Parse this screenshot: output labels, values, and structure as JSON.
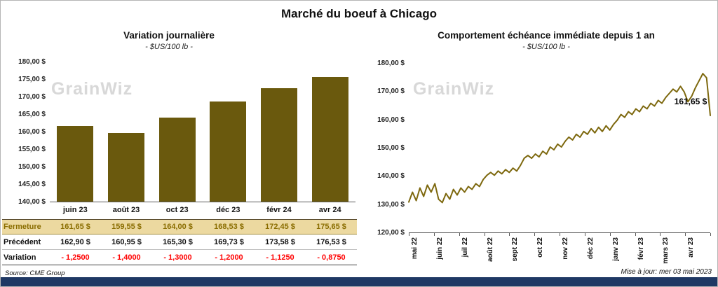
{
  "page": {
    "title": "Marché du boeuf à Chicago",
    "source": "Source: CME Group",
    "updated": "Mise à jour: mer 03 mai 2023",
    "watermark": "GrainWiz"
  },
  "colors": {
    "accent": "#6a590d",
    "line": "#7d680e",
    "fermeture_bg": "#ecd9a0",
    "fermeture_text": "#8a6d00",
    "variation_text": "#ff0000",
    "footer_bar": "#1f3864",
    "watermark": "#d4d4d4"
  },
  "chart_data": [
    {
      "type": "bar",
      "title": "Variation  journalière",
      "subtitle": "- $US/100 lb -",
      "categories": [
        "juin 23",
        "août 23",
        "oct 23",
        "déc 23",
        "févr 24",
        "avr 24"
      ],
      "values": [
        161.65,
        159.55,
        164.0,
        168.53,
        172.45,
        175.65
      ],
      "ylim": [
        140,
        180
      ],
      "ytick_labels": [
        "180,00 $",
        "175,00 $",
        "170,00 $",
        "165,00 $",
        "160,00 $",
        "155,00 $",
        "150,00 $",
        "145,00 $",
        "140,00 $"
      ],
      "grid": false,
      "legend": "none"
    },
    {
      "type": "line",
      "title": "Comportement  échéance  immédiate  depuis 1 an",
      "subtitle": "- $US/100 lb -",
      "x_labels": [
        "mai 22",
        "juin 22",
        "juil 22",
        "août 22",
        "sept 22",
        "oct 22",
        "nov 22",
        "déc 22",
        "janv 23",
        "févr 23",
        "mars 23",
        "avr 23"
      ],
      "ylim": [
        120,
        180
      ],
      "ytick_labels": [
        "180,00 $",
        "170,00 $",
        "160,00 $",
        "150,00 $",
        "140,00 $",
        "130,00 $",
        "120,00 $"
      ],
      "annotation": "161,65 $",
      "last_value": 161.65,
      "grid": false,
      "legend": "none",
      "values": [
        131.0,
        134.5,
        131.5,
        136.0,
        133.0,
        137.0,
        134.5,
        137.5,
        132.0,
        130.8,
        134.0,
        132.0,
        135.5,
        133.5,
        136.0,
        134.5,
        136.5,
        135.5,
        137.5,
        136.5,
        139.0,
        140.5,
        141.5,
        140.5,
        142.0,
        141.0,
        142.5,
        141.5,
        143.0,
        142.0,
        144.0,
        146.5,
        147.5,
        146.5,
        148.0,
        147.0,
        149.0,
        148.0,
        150.5,
        149.5,
        151.5,
        150.5,
        152.5,
        154.0,
        153.0,
        155.0,
        154.0,
        156.0,
        155.0,
        157.0,
        155.5,
        157.5,
        156.0,
        158.0,
        156.5,
        158.5,
        160.0,
        162.0,
        161.0,
        163.0,
        162.0,
        164.0,
        163.0,
        165.0,
        164.0,
        166.0,
        165.0,
        167.0,
        166.0,
        168.0,
        169.5,
        171.0,
        170.0,
        172.0,
        170.0,
        166.5,
        168.5,
        171.5,
        174.0,
        176.5,
        175.0,
        161.65
      ]
    }
  ],
  "table": {
    "rows": [
      {
        "label": "Fermeture",
        "style": "fermeture",
        "values": [
          "161,65  $",
          "159,55  $",
          "164,00  $",
          "168,53  $",
          "172,45  $",
          "175,65  $"
        ]
      },
      {
        "label": "Précédent",
        "style": "precedent",
        "values": [
          "162,90  $",
          "160,95  $",
          "165,30  $",
          "169,73  $",
          "173,58  $",
          "176,53  $"
        ]
      },
      {
        "label": "Variation",
        "style": "variation",
        "values": [
          "- 1,2500",
          "- 1,4000",
          "- 1,3000",
          "- 1,2000",
          "- 1,1250",
          "- 0,8750"
        ]
      }
    ]
  }
}
